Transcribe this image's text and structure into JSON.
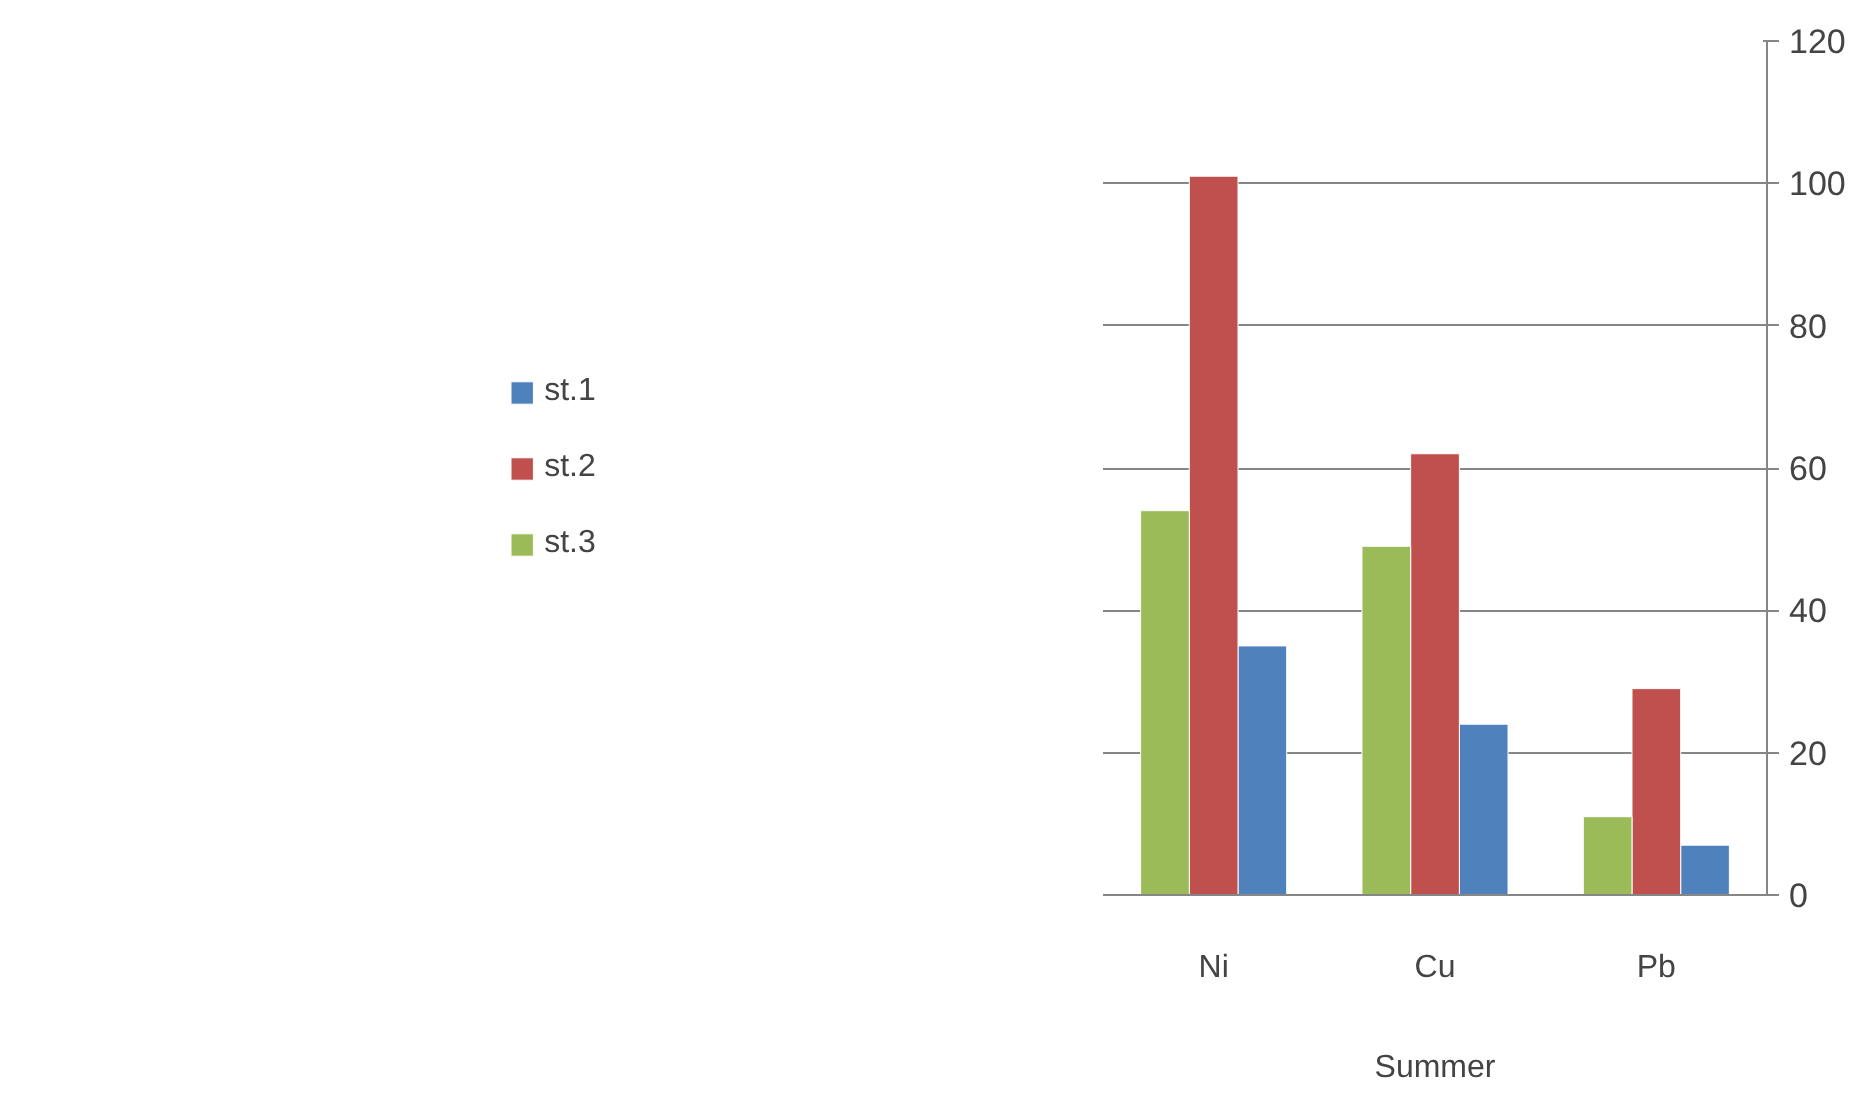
{
  "chart_data": {
    "type": "bar",
    "xlabel": "Summer",
    "categories": [
      "Ni",
      "Cu",
      "Pb"
    ],
    "series": [
      {
        "name": "st.1",
        "color": "#4f81bd",
        "values": [
          35,
          24,
          7
        ]
      },
      {
        "name": "st.2",
        "color": "#c0504d",
        "values": [
          101,
          62,
          29
        ]
      },
      {
        "name": "st.3",
        "color": "#9bbb59",
        "values": [
          54,
          49,
          11
        ]
      }
    ],
    "ylim": [
      0,
      120
    ],
    "yticks": [
      0,
      20,
      40,
      60,
      80,
      100,
      120
    ],
    "grid": "y",
    "legend": "left"
  }
}
